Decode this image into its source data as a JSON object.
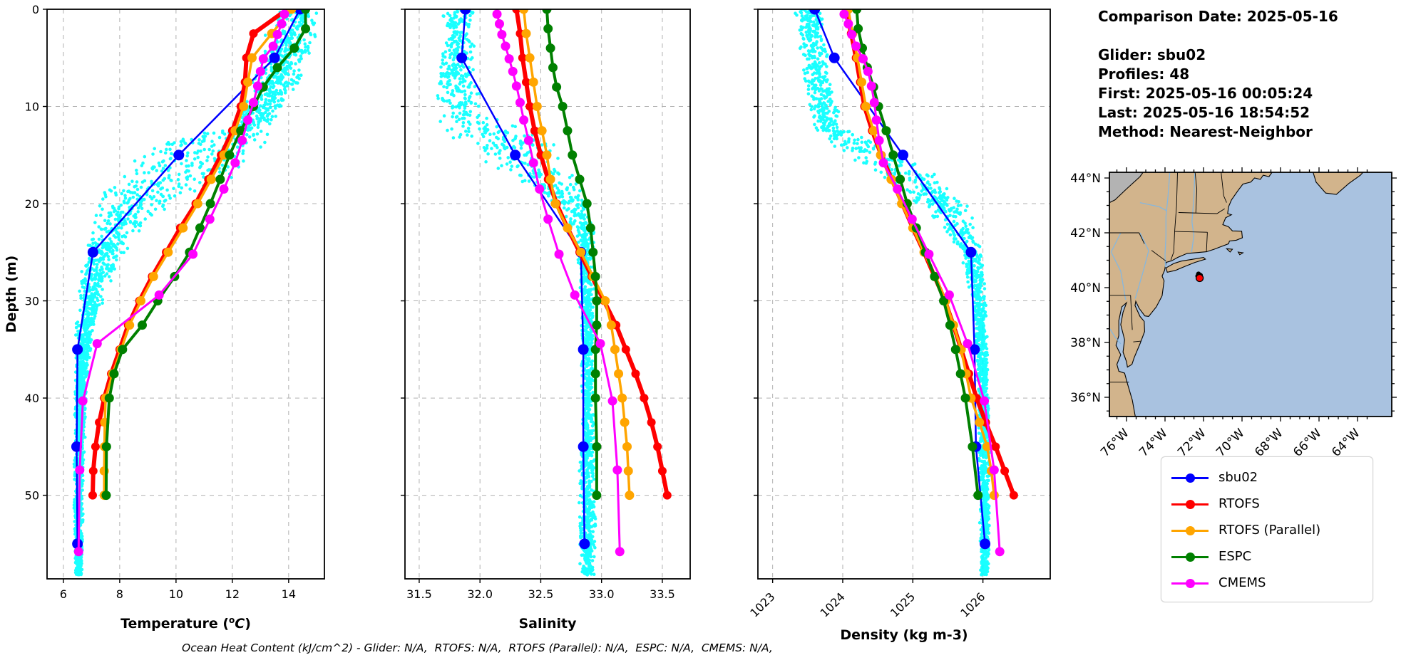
{
  "info_panel": {
    "lines": [
      "Comparison Date: 2025-05-16",
      "",
      "Glider: sbu02",
      "Profiles: 48",
      "First: 2025-05-16 00:05:24",
      "Last: 2025-05-16 18:54:52",
      "Method: Nearest-Neighbor"
    ]
  },
  "legend": {
    "entries": [
      {
        "label": "sbu02",
        "color": "#0000ff"
      },
      {
        "label": "RTOFS",
        "color": "#ff0000"
      },
      {
        "label": "RTOFS (Parallel)",
        "color": "#ffa500"
      },
      {
        "label": "ESPC",
        "color": "#008000"
      },
      {
        "label": "CMEMS",
        "color": "#ff00ff"
      }
    ]
  },
  "caption": "Ocean Heat Content (kJ/cm^2) - Glider: N/A,  RTOFS: N/A,  RTOFS (Parallel): N/A,  ESPC: N/A,  CMEMS: N/A,",
  "map": {
    "lat_ticks": [
      44,
      42,
      40,
      38,
      36
    ],
    "lat_labels": [
      "44°N",
      "42°N",
      "40°N",
      "38°N",
      "36°N"
    ],
    "lon_ticks": [
      -76,
      -74,
      -72,
      -70,
      -68,
      -66,
      -64
    ],
    "lon_labels": [
      "76°W",
      "74°W",
      "72°W",
      "70°W",
      "68°W",
      "66°W",
      "64°W"
    ],
    "marker": {
      "lon": -72.2,
      "lat": 40.35,
      "color": "#ff0000"
    },
    "colors": {
      "ocean": "#a9c2e0",
      "land": "#d2b48c",
      "canada": "#b3b3b3",
      "coast": "#000000",
      "border": "#000000",
      "river": "#86b7de"
    }
  },
  "chart_data": {
    "type": "line",
    "note": "Vertical ocean profiles: y = depth (m, increasing downward), glider raw data shown as cyan scatter cloud",
    "ylabel": "Depth (m)",
    "ylim": [
      0,
      58.6
    ],
    "yticks": [
      0,
      10,
      20,
      30,
      40,
      50
    ],
    "scatter_color": "#00ffff",
    "depth_levels": {
      "sbu02": [
        0,
        5,
        15,
        25,
        35,
        45,
        55
      ],
      "RTOFS": [
        0,
        2.5,
        5,
        7.5,
        10,
        12.5,
        15,
        17.5,
        20,
        22.5,
        25,
        27.5,
        30,
        32.5,
        35,
        37.5,
        40,
        42.5,
        45,
        47.5,
        50
      ],
      "RTOFS (Parallel)": [
        0,
        2.5,
        5,
        7.5,
        10,
        12.5,
        15,
        17.5,
        20,
        22.5,
        25,
        27.5,
        30,
        32.5,
        35,
        37.5,
        40,
        42.5,
        45,
        47.5,
        50
      ],
      "ESPC": [
        0,
        2,
        4,
        6,
        8,
        10,
        12.5,
        15,
        17.5,
        20,
        22.5,
        25,
        27.5,
        30,
        32.5,
        35,
        37.5,
        40,
        45,
        50
      ],
      "CMEMS": [
        0.5,
        1.5,
        2.6,
        3.8,
        5.1,
        6.4,
        7.9,
        9.6,
        11.4,
        13.5,
        15.8,
        18.5,
        21.6,
        25.2,
        29.4,
        34.4,
        40.3,
        47.4,
        55.8
      ]
    },
    "panels": [
      {
        "xlabel": "Temperature (°C)",
        "xlabel_style": "superscript-oC",
        "xlim": [
          5.42,
          15.27
        ],
        "xticks": [
          6,
          8,
          10,
          12,
          14
        ],
        "xtick_labels": [
          "6",
          "8",
          "10",
          "12",
          "14"
        ],
        "rotate_xticks": false,
        "series": {
          "sbu02": [
            14.4,
            13.5,
            10.1,
            7.05,
            6.5,
            6.47,
            6.5
          ],
          "RTOFS": [
            13.95,
            12.75,
            12.5,
            12.45,
            12.3,
            12.0,
            11.6,
            11.15,
            10.7,
            10.15,
            9.65,
            9.15,
            8.7,
            8.3,
            8.0,
            7.7,
            7.45,
            7.27,
            7.14,
            7.06,
            7.04
          ],
          "RTOFS (Parallel)": [
            14.1,
            13.4,
            12.7,
            12.55,
            12.4,
            12.1,
            11.7,
            11.25,
            10.77,
            10.25,
            9.72,
            9.2,
            8.75,
            8.35,
            8.05,
            7.75,
            7.5,
            7.47,
            7.46,
            7.45,
            7.45
          ],
          "ESPC": [
            14.6,
            14.6,
            14.2,
            13.6,
            13.1,
            12.75,
            12.3,
            11.9,
            11.57,
            11.22,
            10.85,
            10.48,
            9.95,
            9.35,
            8.8,
            8.1,
            7.8,
            7.63,
            7.53,
            7.52
          ],
          "CMEMS": [
            13.85,
            13.75,
            13.6,
            13.45,
            13.1,
            13.0,
            12.9,
            12.75,
            12.55,
            12.35,
            12.1,
            11.7,
            11.2,
            10.6,
            9.4,
            7.2,
            6.69,
            6.58,
            6.54
          ]
        },
        "glider_scatter_envelope": [
          [
            0,
            13.4,
            15.25
          ],
          [
            3,
            13.0,
            15.2
          ],
          [
            6,
            12.8,
            14.7
          ],
          [
            9,
            12.5,
            14.1
          ],
          [
            12,
            11.8,
            13.6
          ],
          [
            13.5,
            9.2,
            13.4
          ],
          [
            15,
            8.3,
            13.1
          ],
          [
            17,
            7.8,
            12.7
          ],
          [
            19,
            7.3,
            10.6
          ],
          [
            21,
            7.0,
            9.4
          ],
          [
            24,
            6.7,
            8.5
          ],
          [
            28,
            6.5,
            7.7
          ],
          [
            33,
            6.42,
            7.1
          ],
          [
            38,
            6.4,
            6.85
          ],
          [
            45,
            6.38,
            6.78
          ],
          [
            52,
            6.35,
            6.72
          ],
          [
            58,
            6.42,
            6.68
          ]
        ],
        "scatter_points": 2300
      },
      {
        "xlabel": "Salinity",
        "xlabel_style": "plain",
        "xlim": [
          31.383,
          33.729
        ],
        "xticks": [
          31.5,
          32.0,
          32.5,
          33.0,
          33.5
        ],
        "xtick_labels": [
          "31.5",
          "32.0",
          "32.5",
          "33.0",
          "33.5"
        ],
        "rotate_xticks": false,
        "series": {
          "sbu02": [
            31.88,
            31.85,
            32.29,
            32.83,
            32.85,
            32.85,
            32.86
          ],
          "RTOFS": [
            32.3,
            32.33,
            32.35,
            32.38,
            32.41,
            32.45,
            32.5,
            32.56,
            32.63,
            32.72,
            32.82,
            32.92,
            33.02,
            33.12,
            33.2,
            33.28,
            33.35,
            33.41,
            33.46,
            33.5,
            33.54
          ],
          "RTOFS (Parallel)": [
            32.36,
            32.38,
            32.41,
            32.44,
            32.47,
            32.51,
            32.55,
            32.58,
            32.62,
            32.72,
            32.83,
            32.93,
            33.03,
            33.08,
            33.11,
            33.14,
            33.17,
            33.19,
            33.21,
            33.22,
            33.23
          ],
          "ESPC": [
            32.55,
            32.56,
            32.58,
            32.6,
            32.63,
            32.68,
            32.72,
            32.76,
            32.82,
            32.88,
            32.91,
            32.93,
            32.95,
            32.96,
            32.96,
            32.95,
            32.95,
            32.95,
            32.96,
            32.96
          ],
          "CMEMS": [
            32.14,
            32.16,
            32.18,
            32.21,
            32.24,
            32.27,
            32.3,
            32.33,
            32.36,
            32.4,
            32.44,
            32.49,
            32.56,
            32.65,
            32.78,
            32.99,
            33.09,
            33.13,
            33.15
          ]
        },
        "glider_scatter_envelope": [
          [
            0,
            31.68,
            31.95
          ],
          [
            4,
            31.66,
            31.96
          ],
          [
            8,
            31.64,
            31.98
          ],
          [
            11,
            31.62,
            32.08
          ],
          [
            12.5,
            31.66,
            32.45
          ],
          [
            14,
            31.85,
            32.65
          ],
          [
            16,
            32.05,
            32.78
          ],
          [
            18,
            32.3,
            32.88
          ],
          [
            20,
            32.6,
            32.92
          ],
          [
            23,
            32.78,
            32.95
          ],
          [
            28,
            32.81,
            32.94
          ],
          [
            35,
            32.83,
            32.94
          ],
          [
            45,
            32.82,
            32.95
          ],
          [
            52,
            32.8,
            32.97
          ],
          [
            58,
            32.82,
            32.94
          ]
        ],
        "scatter_points": 1600
      },
      {
        "xlabel": "Density (kg m-3)",
        "xlabel_style": "plain",
        "xlim": [
          1022.79,
          1026.96
        ],
        "xticks": [
          1023,
          1024,
          1025,
          1026
        ],
        "xtick_labels": [
          "1023",
          "1024",
          "1025",
          "1026"
        ],
        "rotate_xticks": true,
        "series": {
          "sbu02": [
            1023.6,
            1023.88,
            1024.86,
            1025.83,
            1025.88,
            1025.9,
            1026.03
          ],
          "RTOFS": [
            1024.05,
            1024.12,
            1024.19,
            1024.25,
            1024.31,
            1024.42,
            1024.55,
            1024.7,
            1024.85,
            1025.0,
            1025.16,
            1025.31,
            1025.46,
            1025.58,
            1025.69,
            1025.8,
            1025.91,
            1026.04,
            1026.18,
            1026.31,
            1026.44
          ],
          "RTOFS (Parallel)": [
            1024.08,
            1024.14,
            1024.21,
            1024.27,
            1024.33,
            1024.44,
            1024.54,
            1024.69,
            1024.84,
            1025.0,
            1025.16,
            1025.32,
            1025.47,
            1025.58,
            1025.69,
            1025.76,
            1025.83,
            1025.95,
            1026.06,
            1026.12,
            1026.16
          ],
          "ESPC": [
            1024.2,
            1024.22,
            1024.28,
            1024.35,
            1024.44,
            1024.51,
            1024.62,
            1024.72,
            1024.82,
            1024.92,
            1025.05,
            1025.18,
            1025.31,
            1025.44,
            1025.53,
            1025.61,
            1025.68,
            1025.75,
            1025.85,
            1025.93
          ],
          "CMEMS": [
            1024.02,
            1024.08,
            1024.13,
            1024.19,
            1024.29,
            1024.36,
            1024.41,
            1024.45,
            1024.48,
            1024.52,
            1024.58,
            1024.78,
            1024.99,
            1025.23,
            1025.52,
            1025.78,
            1026.02,
            1026.16,
            1026.24
          ]
        },
        "glider_scatter_envelope": [
          [
            0,
            1023.3,
            1023.72
          ],
          [
            4,
            1023.36,
            1023.78
          ],
          [
            8,
            1023.44,
            1023.86
          ],
          [
            12,
            1023.52,
            1024.02
          ],
          [
            14,
            1023.75,
            1024.6
          ],
          [
            16,
            1024.2,
            1025.2
          ],
          [
            18,
            1024.7,
            1025.6
          ],
          [
            20,
            1025.0,
            1025.8
          ],
          [
            22,
            1025.35,
            1025.92
          ],
          [
            25,
            1025.6,
            1026.0
          ],
          [
            28,
            1025.78,
            1026.04
          ],
          [
            33,
            1025.88,
            1026.07
          ],
          [
            40,
            1025.92,
            1026.09
          ],
          [
            48,
            1025.94,
            1026.11
          ],
          [
            58,
            1025.96,
            1026.09
          ]
        ],
        "scatter_points": 1700
      }
    ]
  }
}
